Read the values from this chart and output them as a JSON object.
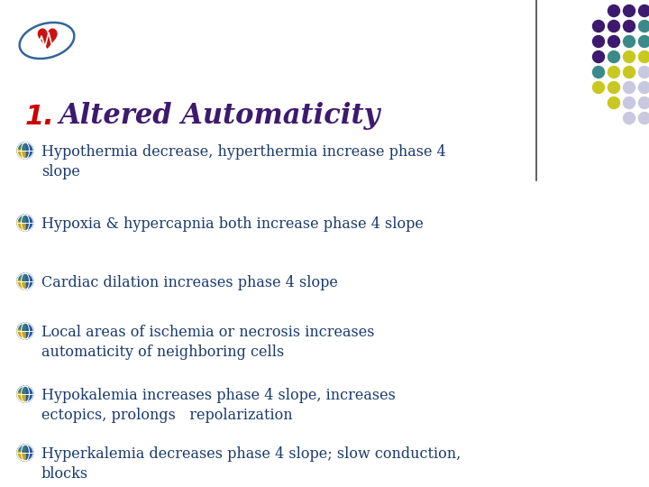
{
  "title_number": "1.",
  "title_text": "Altered Automaticity",
  "title_number_color": "#cc0000",
  "title_text_color": "#3d1a6e",
  "bullet_text_color": "#1a3a6e",
  "bg_color": "#ffffff",
  "bullets": [
    "Hypothermia decrease, hyperthermia increase phase 4\nslope",
    "Hypoxia & hypercapnia both increase phase 4 slope",
    "Cardiac dilation increases phase 4 slope",
    "Local areas of ischemia or necrosis increases\nautomaticity of neighboring cells",
    "Hypokalemia increases phase 4 slope, increases\nectopics, prolongs   repolarization",
    "Hyperkalemia decreases phase 4 slope; slow conduction,\nblocks"
  ],
  "dot_rows": [
    [
      "#3d1a6e",
      "#3d1a6e",
      "#3d1a6e"
    ],
    [
      "#3d1a6e",
      "#3d1a6e",
      "#3d1a6e",
      "#3a8a8a"
    ],
    [
      "#3d1a6e",
      "#3d1a6e",
      "#3a8a8a",
      "#3a8a8a"
    ],
    [
      "#3d1a6e",
      "#3a8a8a",
      "#c8c820",
      "#c8c820"
    ],
    [
      "#3a8a8a",
      "#c8c820",
      "#c8c820",
      "#c8c8e0"
    ],
    [
      "#c8c820",
      "#c8c820",
      "#c8c8e0",
      "#c8c8e0"
    ],
    [
      "#c8c820",
      "#c8c8e0",
      "#c8c8e0"
    ],
    [
      "#c8c8e0",
      "#c8c8e0"
    ]
  ],
  "separator_line_color": "#444444",
  "bullet_font_size": 11.5,
  "title_font_size": 22
}
